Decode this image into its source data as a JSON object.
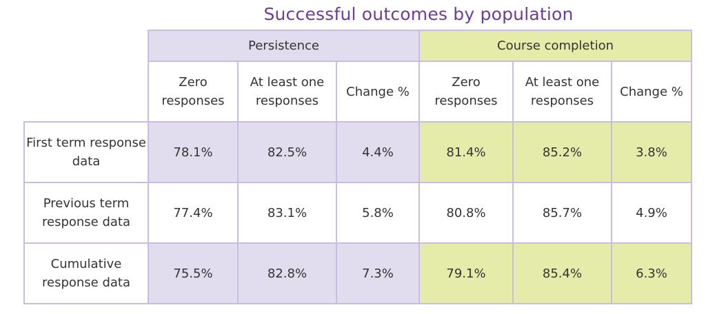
{
  "title": "Successful outcomes by population",
  "groups": {
    "persistence": "Persistence",
    "course_completion": "Course completion"
  },
  "subheaders": {
    "persistence": [
      "Zero responses",
      "At least one responses",
      "Change %"
    ],
    "course_completion": [
      "Zero responses",
      "At least one responses",
      "Change %"
    ]
  },
  "rows": [
    {
      "label": "First term response data",
      "values": [
        "78.1%",
        "82.5%",
        "4.4%",
        "81.4%",
        "85.2%",
        "3.8%"
      ]
    },
    {
      "label": "Previous term response data",
      "values": [
        "77.4%",
        "83.1%",
        "5.8%",
        "80.8%",
        "85.7%",
        "4.9%"
      ]
    },
    {
      "label": "Cumulative response data",
      "values": [
        "75.5%",
        "82.8%",
        "7.3%",
        "79.1%",
        "85.4%",
        "6.3%"
      ]
    }
  ],
  "colors": {
    "title": "#6a3d9a",
    "persistence_fill": "#e1dcee",
    "course_fill": "#e5ecaa",
    "border": "#c9bcdf"
  }
}
